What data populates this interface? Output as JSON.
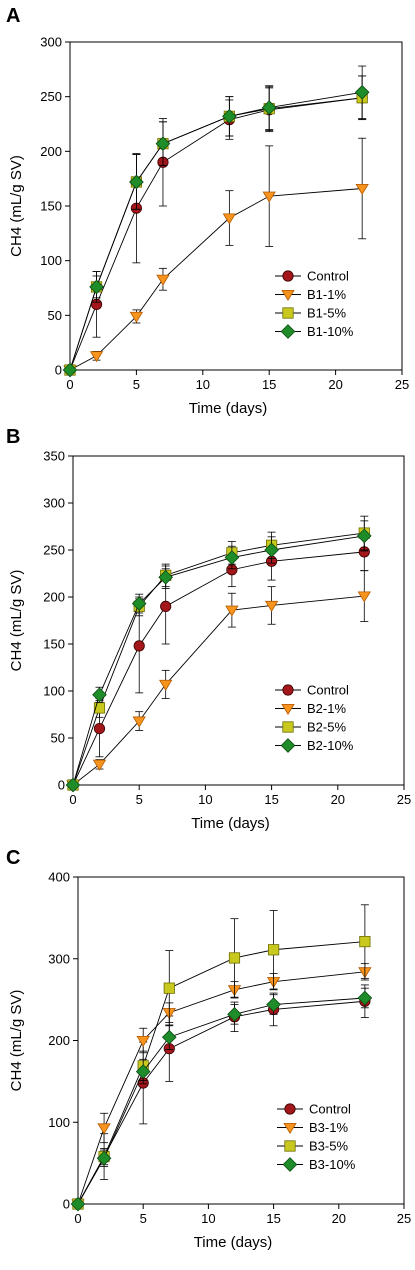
{
  "figure": {
    "panels": [
      "A",
      "B",
      "C"
    ]
  },
  "styles": {
    "Control": {
      "marker": "circle",
      "fill": "#a3161a",
      "stroke": "#3a0000"
    },
    "pct1": {
      "marker": "triangle-down",
      "fill": "#f7941d",
      "stroke": "#b35a00"
    },
    "pct5": {
      "marker": "square",
      "fill": "#c8c81e",
      "stroke": "#6e6e00"
    },
    "pct10": {
      "marker": "diamond",
      "fill": "#1e8c28",
      "stroke": "#0a4a12"
    }
  },
  "chart_data": [
    {
      "panel": "A",
      "type": "line",
      "xlabel": "Time (days)",
      "ylabel": "CH4 (mL/g SV)",
      "xlim": [
        0,
        25
      ],
      "ylim": [
        0,
        300
      ],
      "xticks": [
        0,
        5,
        10,
        15,
        20,
        25
      ],
      "yticks": [
        0,
        50,
        100,
        150,
        200,
        250,
        300
      ],
      "grid": false,
      "legend_position": "bottom-right",
      "x": [
        0,
        2,
        5,
        7,
        12,
        15,
        22
      ],
      "series": [
        {
          "name": "Control",
          "style": "Control",
          "values": [
            0,
            60,
            148,
            190,
            229,
            238,
            249
          ],
          "errors": [
            0,
            30,
            50,
            40,
            18,
            20,
            20
          ]
        },
        {
          "name": "B1-1%",
          "style": "pct1",
          "values": [
            0,
            13,
            49,
            83,
            139,
            159,
            166
          ],
          "errors": [
            0,
            4,
            6,
            10,
            25,
            46,
            46
          ]
        },
        {
          "name": "B1-5%",
          "style": "pct5",
          "values": [
            0,
            76,
            172,
            207,
            232,
            239,
            249
          ],
          "errors": [
            0,
            10,
            25,
            20,
            18,
            20,
            20
          ]
        },
        {
          "name": "B1-10%",
          "style": "pct10",
          "values": [
            0,
            76,
            172,
            207,
            232,
            240,
            254
          ],
          "errors": [
            0,
            14,
            25,
            20,
            18,
            20,
            24
          ]
        }
      ]
    },
    {
      "panel": "B",
      "type": "line",
      "xlabel": "Time (days)",
      "ylabel": "CH4 (mL/g SV)",
      "xlim": [
        0,
        25
      ],
      "ylim": [
        0,
        350
      ],
      "xticks": [
        0,
        5,
        10,
        15,
        20,
        25
      ],
      "yticks": [
        0,
        50,
        100,
        150,
        200,
        250,
        300,
        350
      ],
      "grid": false,
      "legend_position": "bottom-right",
      "x": [
        0,
        2,
        5,
        7,
        12,
        15,
        22
      ],
      "series": [
        {
          "name": "Control",
          "style": "Control",
          "values": [
            0,
            60,
            148,
            190,
            229,
            238,
            248
          ],
          "errors": [
            0,
            30,
            50,
            40,
            18,
            20,
            20
          ]
        },
        {
          "name": "B2-1%",
          "style": "pct1",
          "values": [
            0,
            22,
            68,
            107,
            186,
            191,
            201
          ],
          "errors": [
            0,
            5,
            10,
            15,
            18,
            20,
            27
          ]
        },
        {
          "name": "B2-5%",
          "style": "pct5",
          "values": [
            0,
            82,
            190,
            223,
            247,
            255,
            268
          ],
          "errors": [
            0,
            10,
            10,
            12,
            12,
            14,
            18
          ]
        },
        {
          "name": "B2-10%",
          "style": "pct10",
          "values": [
            0,
            96,
            193,
            221,
            242,
            250,
            265
          ],
          "errors": [
            0,
            8,
            10,
            12,
            12,
            14,
            16
          ]
        }
      ]
    },
    {
      "panel": "C",
      "type": "line",
      "xlabel": "Time (days)",
      "ylabel": "CH4 (mL/g SV)",
      "xlim": [
        0,
        25
      ],
      "ylim": [
        0,
        400
      ],
      "xticks": [
        0,
        5,
        10,
        15,
        20,
        25
      ],
      "yticks": [
        0,
        100,
        200,
        300,
        400
      ],
      "grid": false,
      "legend_position": "bottom-right",
      "x": [
        0,
        2,
        5,
        7,
        12,
        15,
        22
      ],
      "series": [
        {
          "name": "Control",
          "style": "Control",
          "values": [
            0,
            58,
            148,
            190,
            229,
            238,
            248
          ],
          "errors": [
            0,
            28,
            50,
            40,
            18,
            20,
            20
          ]
        },
        {
          "name": "B3-1%",
          "style": "pct1",
          "values": [
            0,
            93,
            200,
            234,
            262,
            272,
            284
          ],
          "errors": [
            0,
            18,
            15,
            12,
            10,
            10,
            10
          ]
        },
        {
          "name": "B3-5%",
          "style": "pct5",
          "values": [
            0,
            58,
            169,
            264,
            301,
            311,
            321
          ],
          "errors": [
            0,
            10,
            18,
            46,
            48,
            48,
            45
          ]
        },
        {
          "name": "B3-10%",
          "style": "pct10",
          "values": [
            0,
            56,
            162,
            204,
            232,
            244,
            252
          ],
          "errors": [
            0,
            10,
            15,
            15,
            12,
            12,
            12
          ]
        }
      ]
    }
  ]
}
